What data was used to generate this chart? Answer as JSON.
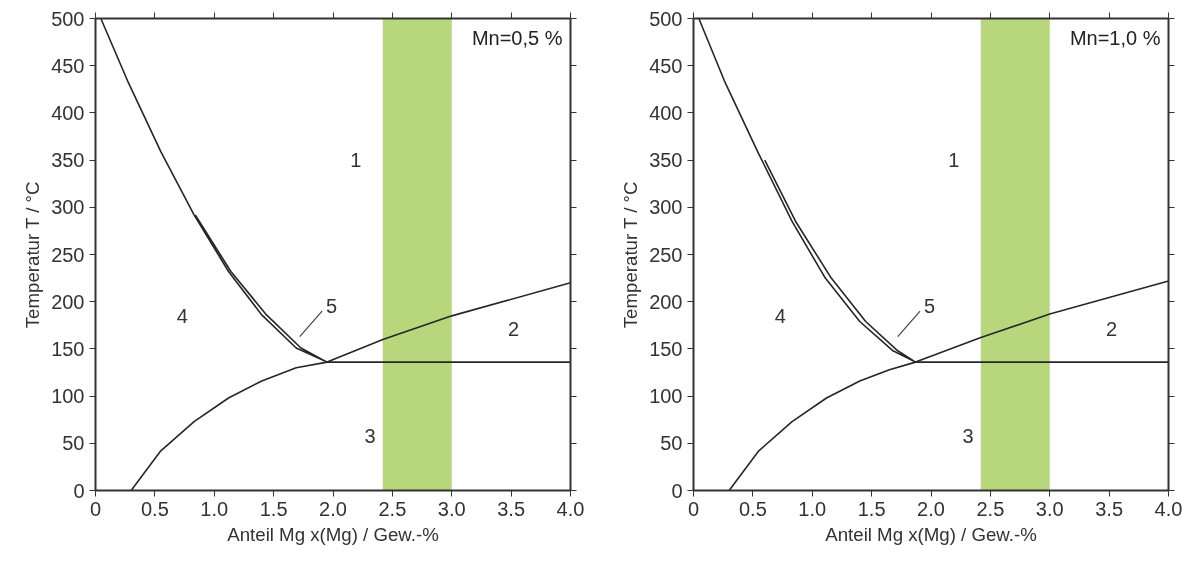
{
  "chart_data": [
    {
      "type": "line",
      "xlabel": "Anteil Mg x(Mg) / Gew.-%",
      "ylabel": "Temperatur T / °C",
      "xlim": [
        0,
        4
      ],
      "ylim": [
        0,
        500
      ],
      "xticks": [
        0,
        0.5,
        {
          "value": 1,
          "label": "1.0"
        },
        1.5,
        {
          "value": 2,
          "label": "2.0"
        },
        2.5,
        {
          "value": 3,
          "label": "3.0"
        },
        3.5,
        {
          "value": 4,
          "label": "4.0"
        }
      ],
      "yticks": [
        0,
        50,
        100,
        150,
        200,
        250,
        300,
        350,
        400,
        450,
        500
      ],
      "grid": false,
      "marker": "none",
      "line_style": "solid",
      "series": [
        {
          "color": "#262626",
          "x": [
            0.045,
            0.27,
            0.55,
            0.83,
            1.12,
            1.4,
            1.69,
            1.95,
            1.73,
            1.44,
            1.14,
            0.84
          ],
          "values": [
            500,
            434,
            359,
            292,
            232,
            186,
            151,
            136,
            151,
            186,
            232,
            292
          ]
        },
        {
          "color": "#262626",
          "x": [
            0.3,
            0.55,
            0.83,
            1.12,
            1.4,
            1.69,
            1.95,
            2.42,
            3.0,
            4.0
          ],
          "values": [
            0,
            42,
            73,
            98,
            116,
            130,
            136,
            160,
            185,
            220
          ]
        },
        {
          "color": "#262626",
          "x": [
            1.95,
            4.0
          ],
          "values": [
            136,
            136
          ]
        }
      ],
      "bands": [
        {
          "axis": "x",
          "from": 2.42,
          "to": 3.0,
          "color": "#b8d77c"
        }
      ],
      "annotations": [
        "Mn=0,5 %",
        "1",
        "2",
        "3",
        "4",
        "5"
      ]
    },
    {
      "type": "line",
      "xlabel": "Anteil Mg x(Mg) / Gew.-%",
      "ylabel": "Temperatur T / °C",
      "xlim": [
        0,
        4
      ],
      "ylim": [
        0,
        500
      ],
      "xticks": [
        0,
        0.5,
        {
          "value": 1,
          "label": "1.0"
        },
        1.5,
        {
          "value": 2,
          "label": "2.0"
        },
        2.5,
        {
          "value": 3,
          "label": "3.0"
        },
        3.5,
        {
          "value": 4,
          "label": "4.0"
        }
      ],
      "yticks": [
        0,
        50,
        100,
        150,
        200,
        250,
        300,
        350,
        400,
        450,
        500
      ],
      "grid": false,
      "marker": "none",
      "line_style": "solid",
      "series": [
        {
          "color": "#262626",
          "x": [
            0.045,
            0.26,
            0.54,
            0.83,
            1.11,
            1.4,
            1.68,
            1.87,
            1.72,
            1.45,
            1.16,
            0.86,
            0.6
          ],
          "values": [
            500,
            434,
            359,
            285,
            225,
            179,
            148,
            136,
            148,
            179,
            225,
            285,
            350
          ]
        },
        {
          "color": "#262626",
          "x": [
            0.3,
            0.55,
            0.83,
            1.12,
            1.4,
            1.65,
            1.87,
            2.42,
            3.0,
            4.0
          ],
          "values": [
            0,
            42,
            73,
            98,
            116,
            128,
            136,
            162,
            187,
            222
          ]
        },
        {
          "color": "#262626",
          "x": [
            1.87,
            4.0
          ],
          "values": [
            136,
            136
          ]
        }
      ],
      "bands": [
        {
          "axis": "x",
          "from": 2.42,
          "to": 3.0,
          "color": "#b8d77c"
        }
      ],
      "annotations": [
        "Mn=1,0 %",
        "1",
        "2",
        "3",
        "4",
        "5"
      ]
    }
  ]
}
